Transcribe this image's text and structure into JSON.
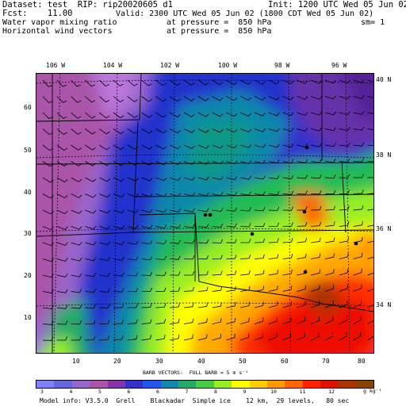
{
  "header": {
    "line1_left": "Dataset: test  RIP: rip20020605 d1",
    "line1_right": "Init: 1200 UTC Wed 05 Jun 02",
    "line2_left": "Fcst:    11.00",
    "line2_right": "Valid: 2300 UTC Wed 05 Jun 02 (1800 CDT Wed 05 Jun 02)",
    "line3_left": "Water vapor mixing ratio",
    "line3_mid": "at pressure =  850 hPa",
    "line3_right": "sm= 1",
    "line4_left": "Horizontal wind vectors",
    "line4_mid": "at pressure =  850 hPa"
  },
  "longitude_labels": [
    "106 W",
    "104 W",
    "102 W",
    "100 W",
    "98 W",
    "96 W"
  ],
  "latitude_labels": [
    "40 N",
    "38 N",
    "36 N",
    "34 N"
  ],
  "grid_y_labels": [
    "60",
    "50",
    "40",
    "30",
    "20",
    "10"
  ],
  "grid_x_labels": [
    "10",
    "20",
    "30",
    "40",
    "50",
    "60",
    "70",
    "80"
  ],
  "barb_caption": "BARB VECTORS:  FULL BARB = 5 m s⁻¹",
  "colorbar": {
    "colors": [
      "#8080ff",
      "#6666dd",
      "#9966cc",
      "#aa55aa",
      "#8833aa",
      "#3333cc",
      "#2255ee",
      "#1188aa",
      "#22aa66",
      "#44cc44",
      "#99ee22",
      "#ffff00",
      "#ffcc00",
      "#ff9900",
      "#ff6600",
      "#ff2200",
      "#dd1100",
      "#aa3300",
      "#884400"
    ],
    "labels": [
      "3",
      "4",
      "5",
      "6",
      "6",
      "7",
      "8",
      "9",
      "10",
      "11",
      "12"
    ],
    "unit": "g kg⁻¹"
  },
  "footer": "Model info: V3.5.0  Grell    Blackadar  Simple ice    12 km,  29 levels,   80 sec"
}
